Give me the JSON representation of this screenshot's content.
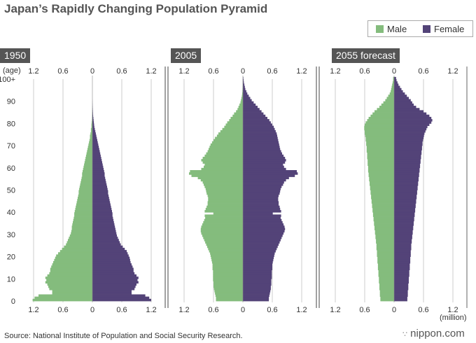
{
  "title": "Japan’s Rapidly Changing Population Pyramid",
  "legend": {
    "male_label": "Male",
    "female_label": "Female"
  },
  "colors": {
    "male": "#84bc7d",
    "female": "#534378",
    "title_bg": "#555555",
    "grid": "#cccccc"
  },
  "age_axis_label": "(age)",
  "unit_label": "(million)",
  "source": "Source: National Institute of Population and Social Security Research.",
  "brand": {
    "mark": "∵",
    "name": "nippon.com"
  },
  "chart_data": {
    "type": "bar",
    "orientation": "horizontal-pyramid",
    "age_ticks": [
      "0",
      "10",
      "20",
      "30",
      "40",
      "50",
      "60",
      "70",
      "80",
      "90",
      "100+"
    ],
    "value_ticks": [
      "1.2",
      "0.6",
      "0",
      "0.6",
      "1.2"
    ],
    "xlim": [
      -1.4,
      1.4
    ],
    "ylim": [
      0,
      100
    ],
    "age_step": 1,
    "panels": [
      {
        "title": "1950",
        "male": [
          1.22,
          1.18,
          1.1,
          0.82,
          0.82,
          0.88,
          0.9,
          0.92,
          0.96,
          0.94,
          0.96,
          0.92,
          0.88,
          0.86,
          0.86,
          0.84,
          0.82,
          0.8,
          0.78,
          0.76,
          0.74,
          0.7,
          0.66,
          0.62,
          0.58,
          0.54,
          0.52,
          0.5,
          0.48,
          0.46,
          0.44,
          0.43,
          0.42,
          0.42,
          0.41,
          0.4,
          0.39,
          0.38,
          0.37,
          0.37,
          0.36,
          0.35,
          0.34,
          0.33,
          0.32,
          0.31,
          0.3,
          0.29,
          0.28,
          0.28,
          0.27,
          0.26,
          0.25,
          0.24,
          0.23,
          0.22,
          0.21,
          0.21,
          0.2,
          0.19,
          0.18,
          0.17,
          0.16,
          0.15,
          0.14,
          0.13,
          0.12,
          0.11,
          0.1,
          0.09,
          0.08,
          0.07,
          0.06,
          0.05,
          0.05,
          0.04,
          0.03,
          0.03,
          0.02,
          0.02,
          0.015,
          0.01,
          0.008,
          0.006,
          0.005,
          0.004,
          0.003,
          0.002,
          0.001,
          0.001,
          0,
          0,
          0,
          0,
          0,
          0,
          0,
          0,
          0,
          0,
          0
        ],
        "female": [
          1.2,
          1.16,
          1.08,
          0.8,
          0.8,
          0.86,
          0.88,
          0.9,
          0.94,
          0.92,
          0.94,
          0.9,
          0.86,
          0.84,
          0.84,
          0.82,
          0.8,
          0.78,
          0.77,
          0.76,
          0.74,
          0.72,
          0.7,
          0.66,
          0.62,
          0.58,
          0.56,
          0.54,
          0.52,
          0.5,
          0.49,
          0.48,
          0.47,
          0.46,
          0.45,
          0.44,
          0.43,
          0.42,
          0.41,
          0.41,
          0.4,
          0.39,
          0.38,
          0.37,
          0.36,
          0.35,
          0.34,
          0.33,
          0.32,
          0.32,
          0.31,
          0.3,
          0.29,
          0.28,
          0.27,
          0.26,
          0.25,
          0.25,
          0.24,
          0.23,
          0.22,
          0.21,
          0.2,
          0.19,
          0.18,
          0.17,
          0.16,
          0.15,
          0.14,
          0.13,
          0.12,
          0.11,
          0.1,
          0.09,
          0.08,
          0.07,
          0.06,
          0.05,
          0.04,
          0.035,
          0.03,
          0.025,
          0.02,
          0.015,
          0.012,
          0.01,
          0.008,
          0.006,
          0.004,
          0.002,
          0.001,
          0,
          0,
          0,
          0,
          0,
          0,
          0,
          0,
          0,
          0
        ]
      },
      {
        "title": "2005",
        "male": [
          0.55,
          0.55,
          0.56,
          0.57,
          0.58,
          0.59,
          0.6,
          0.6,
          0.6,
          0.61,
          0.61,
          0.61,
          0.61,
          0.61,
          0.62,
          0.62,
          0.62,
          0.63,
          0.64,
          0.65,
          0.66,
          0.67,
          0.69,
          0.71,
          0.73,
          0.75,
          0.77,
          0.79,
          0.81,
          0.83,
          0.85,
          0.86,
          0.86,
          0.85,
          0.83,
          0.81,
          0.79,
          0.77,
          0.78,
          0.6,
          0.78,
          0.76,
          0.74,
          0.72,
          0.72,
          0.71,
          0.71,
          0.72,
          0.74,
          0.75,
          0.76,
          0.78,
          0.8,
          0.82,
          0.86,
          0.92,
          1.05,
          1.1,
          1.08,
          0.85,
          0.8,
          0.78,
          0.82,
          0.85,
          0.82,
          0.78,
          0.75,
          0.72,
          0.7,
          0.68,
          0.66,
          0.63,
          0.6,
          0.57,
          0.53,
          0.5,
          0.46,
          0.42,
          0.38,
          0.35,
          0.32,
          0.28,
          0.25,
          0.21,
          0.18,
          0.14,
          0.11,
          0.09,
          0.07,
          0.05,
          0.04,
          0.03,
          0.02,
          0.015,
          0.01,
          0.008,
          0.005,
          0.003,
          0.002,
          0.001,
          0.001
        ],
        "female": [
          0.53,
          0.53,
          0.54,
          0.55,
          0.56,
          0.57,
          0.57,
          0.58,
          0.58,
          0.58,
          0.59,
          0.59,
          0.59,
          0.59,
          0.6,
          0.6,
          0.6,
          0.61,
          0.62,
          0.63,
          0.64,
          0.65,
          0.67,
          0.69,
          0.71,
          0.73,
          0.75,
          0.77,
          0.79,
          0.81,
          0.83,
          0.85,
          0.86,
          0.85,
          0.83,
          0.81,
          0.79,
          0.77,
          0.78,
          0.61,
          0.78,
          0.76,
          0.75,
          0.73,
          0.73,
          0.72,
          0.72,
          0.73,
          0.75,
          0.76,
          0.77,
          0.79,
          0.82,
          0.84,
          0.88,
          0.94,
          1.06,
          1.12,
          1.1,
          0.88,
          0.84,
          0.82,
          0.86,
          0.88,
          0.86,
          0.83,
          0.8,
          0.78,
          0.76,
          0.75,
          0.74,
          0.73,
          0.72,
          0.71,
          0.7,
          0.69,
          0.67,
          0.65,
          0.63,
          0.6,
          0.57,
          0.54,
          0.5,
          0.46,
          0.42,
          0.38,
          0.34,
          0.3,
          0.26,
          0.22,
          0.18,
          0.15,
          0.12,
          0.09,
          0.07,
          0.05,
          0.04,
          0.03,
          0.02,
          0.015,
          0.01
        ]
      },
      {
        "title": "2055 forecast",
        "male": [
          0.28,
          0.28,
          0.29,
          0.29,
          0.29,
          0.3,
          0.3,
          0.3,
          0.31,
          0.31,
          0.31,
          0.32,
          0.32,
          0.32,
          0.33,
          0.33,
          0.33,
          0.34,
          0.34,
          0.34,
          0.35,
          0.35,
          0.35,
          0.36,
          0.36,
          0.36,
          0.37,
          0.37,
          0.38,
          0.38,
          0.39,
          0.39,
          0.4,
          0.4,
          0.41,
          0.41,
          0.42,
          0.42,
          0.43,
          0.43,
          0.44,
          0.44,
          0.45,
          0.45,
          0.46,
          0.46,
          0.47,
          0.47,
          0.48,
          0.48,
          0.49,
          0.49,
          0.5,
          0.5,
          0.51,
          0.51,
          0.52,
          0.52,
          0.53,
          0.53,
          0.53,
          0.54,
          0.54,
          0.54,
          0.55,
          0.55,
          0.55,
          0.56,
          0.56,
          0.56,
          0.57,
          0.57,
          0.58,
          0.58,
          0.59,
          0.6,
          0.6,
          0.61,
          0.61,
          0.6,
          0.58,
          0.55,
          0.52,
          0.48,
          0.44,
          0.4,
          0.35,
          0.3,
          0.26,
          0.22,
          0.18,
          0.15,
          0.12,
          0.09,
          0.07,
          0.06,
          0.05,
          0.04,
          0.03,
          0.02,
          0.02
        ],
        "female": [
          0.27,
          0.27,
          0.28,
          0.28,
          0.28,
          0.29,
          0.29,
          0.29,
          0.3,
          0.3,
          0.3,
          0.31,
          0.31,
          0.31,
          0.32,
          0.32,
          0.32,
          0.33,
          0.33,
          0.33,
          0.34,
          0.34,
          0.34,
          0.35,
          0.35,
          0.35,
          0.36,
          0.36,
          0.37,
          0.37,
          0.38,
          0.38,
          0.39,
          0.39,
          0.4,
          0.4,
          0.41,
          0.41,
          0.42,
          0.42,
          0.43,
          0.43,
          0.44,
          0.44,
          0.45,
          0.45,
          0.46,
          0.46,
          0.47,
          0.47,
          0.48,
          0.48,
          0.49,
          0.49,
          0.5,
          0.5,
          0.51,
          0.51,
          0.52,
          0.52,
          0.53,
          0.53,
          0.54,
          0.54,
          0.55,
          0.55,
          0.56,
          0.56,
          0.57,
          0.57,
          0.58,
          0.58,
          0.59,
          0.6,
          0.61,
          0.62,
          0.64,
          0.66,
          0.68,
          0.72,
          0.76,
          0.78,
          0.76,
          0.72,
          0.66,
          0.6,
          0.52,
          0.45,
          0.4,
          0.37,
          0.34,
          0.3,
          0.26,
          0.22,
          0.18,
          0.15,
          0.12,
          0.09,
          0.07,
          0.05,
          0.04
        ]
      }
    ]
  }
}
